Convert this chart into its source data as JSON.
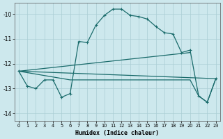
{
  "xlabel": "Humidex (Indice chaleur)",
  "background_color": "#cde8ed",
  "grid_color": "#aacdd4",
  "line_color": "#1a6b6b",
  "xlim": [
    -0.5,
    23.5
  ],
  "ylim": [
    -14.3,
    -9.55
  ],
  "yticks": [
    -14,
    -13,
    -12,
    -11,
    -10
  ],
  "xticks": [
    0,
    1,
    2,
    3,
    4,
    5,
    6,
    7,
    8,
    9,
    10,
    11,
    12,
    13,
    14,
    15,
    16,
    17,
    18,
    19,
    20,
    21,
    22,
    23
  ],
  "line1_x": [
    0,
    1,
    2,
    3,
    4,
    5,
    6,
    7,
    8,
    9,
    10,
    11,
    12,
    13,
    14,
    15,
    16,
    17,
    18,
    19,
    20,
    21,
    22,
    23
  ],
  "line1_y": [
    -12.3,
    -12.9,
    -13.0,
    -12.65,
    -12.65,
    -13.35,
    -13.2,
    -11.1,
    -11.15,
    -10.45,
    -10.05,
    -9.8,
    -9.8,
    -10.05,
    -10.1,
    -10.2,
    -10.5,
    -10.75,
    -10.8,
    -11.55,
    -11.45,
    -13.3,
    -13.55,
    -12.6
  ],
  "line2_x": [
    0,
    6,
    7,
    10,
    20,
    21,
    22,
    23
  ],
  "line2_y": [
    -12.3,
    -12.65,
    -12.65,
    -12.65,
    -12.65,
    -13.3,
    -13.55,
    -12.6
  ],
  "line3_x": [
    0,
    20
  ],
  "line3_y": [
    -12.3,
    -11.55
  ],
  "line4_x": [
    0,
    23
  ],
  "line4_y": [
    -12.3,
    -12.6
  ]
}
